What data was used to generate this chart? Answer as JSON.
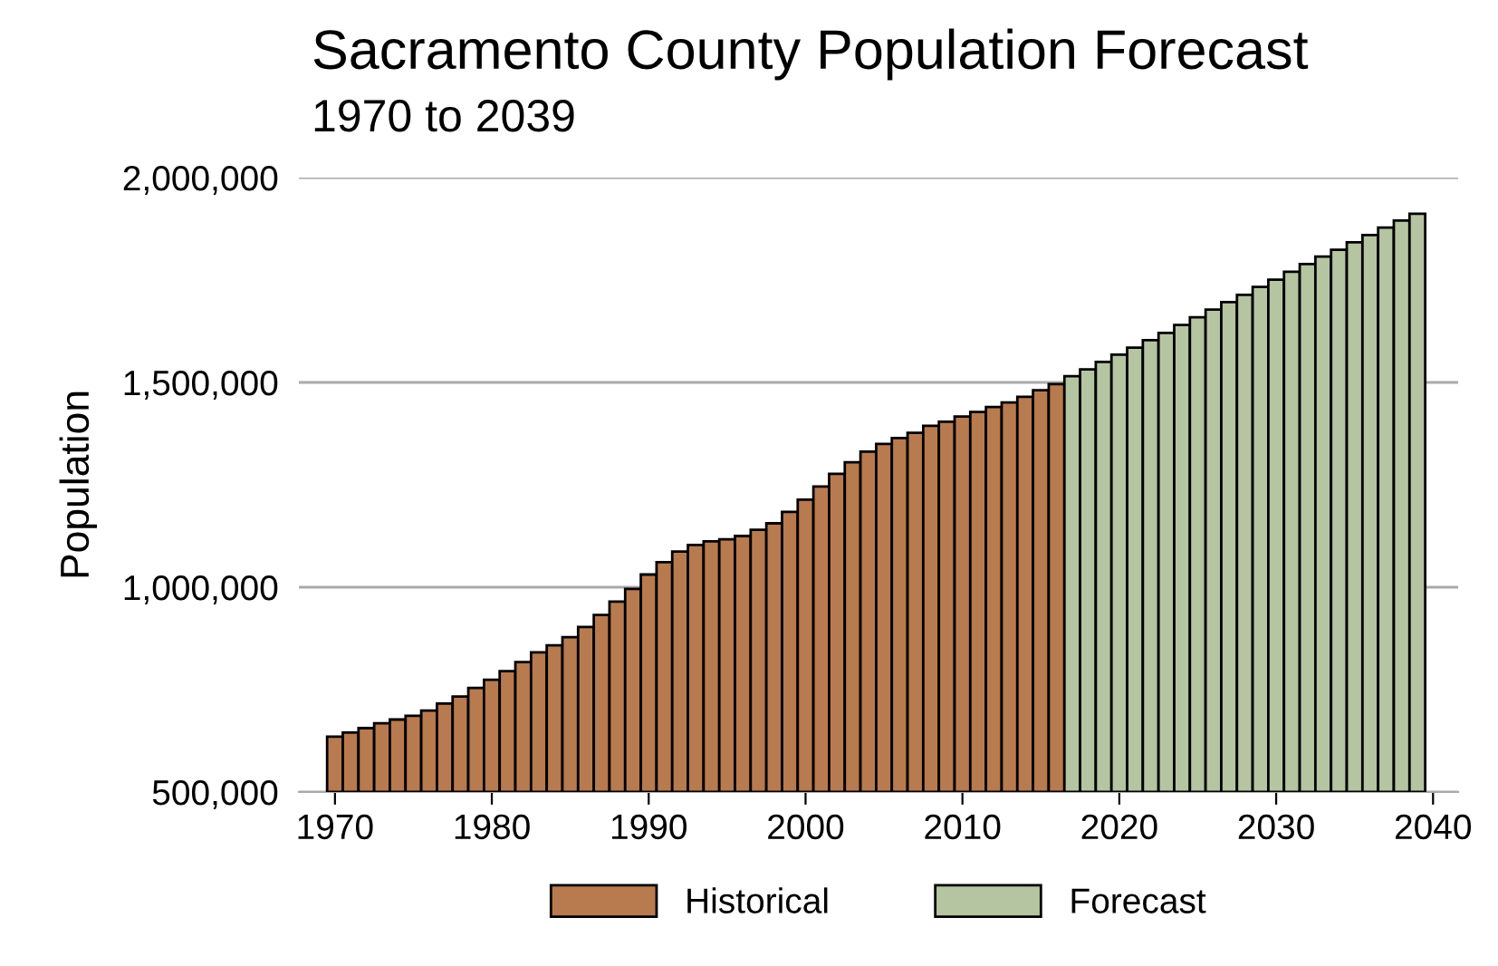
{
  "chart_data": {
    "type": "bar",
    "title": "Sacramento County Population Forecast",
    "subtitle": "1970 to 2039",
    "ylabel": "Population",
    "xlim": [
      1967.7,
      2041.6
    ],
    "xticks": [
      1970,
      1980,
      1990,
      2000,
      2010,
      2020,
      2030,
      2040
    ],
    "ylim": [
      500000,
      2000000
    ],
    "yticks": [
      {
        "value": 500000,
        "label": "500,000"
      },
      {
        "value": 1000000,
        "label": "1,000,000"
      },
      {
        "value": 1500000,
        "label": "1,500,000"
      },
      {
        "value": 2000000,
        "label": "2,000,000"
      }
    ],
    "grid": "y",
    "legend": "bottom",
    "series": [
      {
        "name": "Historical",
        "color": "#b87a4f",
        "x": [
          1970,
          1971,
          1972,
          1973,
          1974,
          1975,
          1976,
          1977,
          1978,
          1979,
          1980,
          1981,
          1982,
          1983,
          1984,
          1985,
          1986,
          1987,
          1988,
          1989,
          1990,
          1991,
          1992,
          1993,
          1994,
          1995,
          1996,
          1997,
          1998,
          1999,
          2000,
          2001,
          2002,
          2003,
          2004,
          2005,
          2006,
          2007,
          2008,
          2009,
          2010,
          2011,
          2012,
          2013,
          2014,
          2015,
          2016
        ],
        "values": [
          635000,
          645000,
          656000,
          668000,
          677000,
          686000,
          699000,
          716000,
          733000,
          754000,
          774000,
          795000,
          817000,
          841000,
          858000,
          878000,
          903000,
          932000,
          965000,
          996000,
          1031000,
          1061000,
          1087000,
          1103000,
          1112000,
          1117000,
          1125000,
          1140000,
          1156000,
          1184000,
          1214000,
          1246000,
          1277000,
          1305000,
          1331000,
          1350000,
          1364000,
          1377000,
          1394000,
          1404000,
          1417000,
          1428000,
          1440000,
          1451000,
          1465000,
          1481000,
          1496000
        ]
      },
      {
        "name": "Forecast",
        "color": "#b5c4a1",
        "x": [
          2017,
          2018,
          2019,
          2020,
          2021,
          2022,
          2023,
          2024,
          2025,
          2026,
          2027,
          2028,
          2029,
          2030,
          2031,
          2032,
          2033,
          2034,
          2035,
          2036,
          2037,
          2038,
          2039
        ],
        "values": [
          1515000,
          1532000,
          1550000,
          1568000,
          1585000,
          1603000,
          1621000,
          1640000,
          1659000,
          1678000,
          1696000,
          1714000,
          1733000,
          1751000,
          1770000,
          1789000,
          1807000,
          1824000,
          1842000,
          1860000,
          1878000,
          1895000,
          1912000
        ]
      }
    ]
  }
}
